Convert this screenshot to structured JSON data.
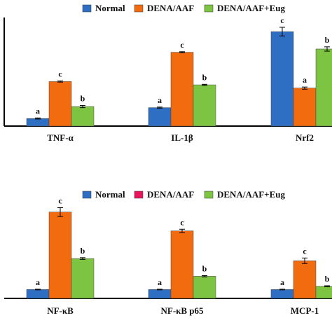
{
  "chart_data": [
    {
      "type": "bar",
      "title": "",
      "xlabel": "",
      "ylabel": "",
      "ylim": [
        0,
        1
      ],
      "categories": [
        "TNF-α",
        "IL-1β",
        "Nrf2"
      ],
      "series": [
        {
          "name": "Normal",
          "color": "#2e6fc4",
          "values": [
            0.07,
            0.17,
            0.87
          ],
          "errors": [
            0.005,
            0.005,
            0.04
          ],
          "labels": [
            "a",
            "a",
            "c"
          ]
        },
        {
          "name": "DENA/AAF",
          "color": "#f26b0f",
          "values": [
            0.41,
            0.68,
            0.35
          ],
          "errors": [
            0.005,
            0.005,
            0.01
          ],
          "labels": [
            "c",
            "c",
            "a"
          ]
        },
        {
          "name": "DENA/AAF+Eug",
          "color": "#7cc441",
          "values": [
            0.18,
            0.38,
            0.71
          ],
          "errors": [
            0.01,
            0.005,
            0.02
          ],
          "labels": [
            "b",
            "b",
            "b"
          ]
        }
      ]
    },
    {
      "type": "bar",
      "title": "",
      "xlabel": "",
      "ylabel": "",
      "ylim": [
        0,
        1
      ],
      "categories": [
        "NF-κB",
        "NF-κB p65",
        "MCP-1"
      ],
      "series": [
        {
          "name": "Normal",
          "color": "#2e6fc4",
          "values": [
            0.08,
            0.08,
            0.08
          ],
          "errors": [
            0.003,
            0.003,
            0.003
          ],
          "labels": [
            "a",
            "a",
            "a"
          ]
        },
        {
          "name": "DENA/AAF",
          "color": "#f26b0f",
          "values": [
            0.78,
            0.61,
            0.34
          ],
          "errors": [
            0.04,
            0.015,
            0.025
          ],
          "labels": [
            "c",
            "c",
            "c"
          ]
        },
        {
          "name": "DENA/AAF+Eug",
          "color": "#7cc441",
          "values": [
            0.36,
            0.2,
            0.11
          ],
          "errors": [
            0.008,
            0.006,
            0.004
          ],
          "labels": [
            "b",
            "b",
            "b"
          ]
        }
      ],
      "legend_swatch_colors": [
        "#2e6fc4",
        "#e8175d",
        "#7cc441"
      ]
    }
  ]
}
